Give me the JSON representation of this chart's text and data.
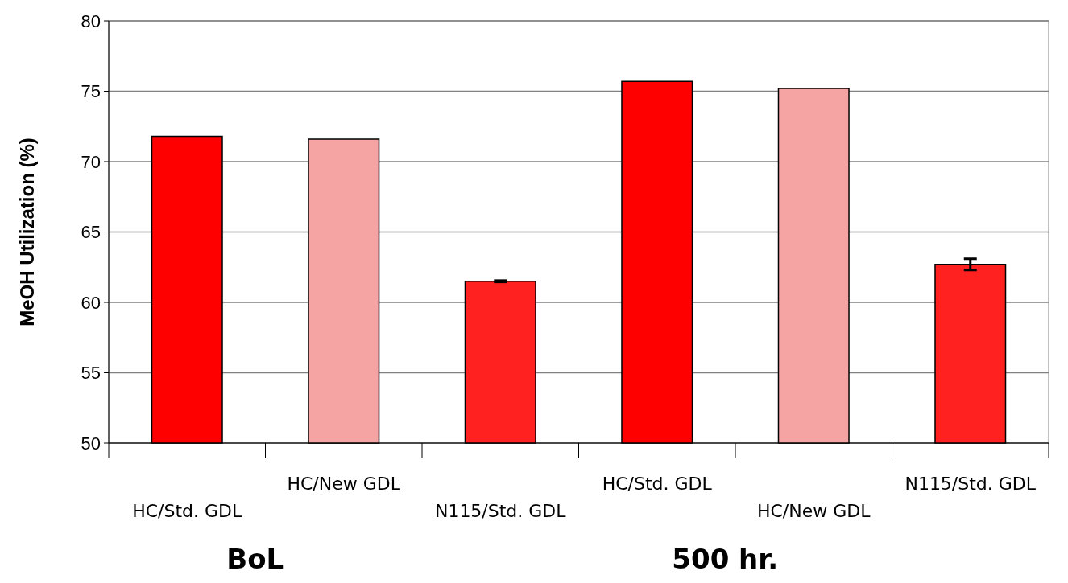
{
  "chart_data": {
    "type": "bar",
    "ylabel": "MeOH Utilization (%)",
    "categories": [
      "HC/Std. GDL",
      "HC/New GDL",
      "N115/Std. GDL",
      "HC/Std. GDL",
      "HC/New GDL",
      "N115/Std. GDL"
    ],
    "values": [
      71.8,
      71.6,
      61.5,
      75.7,
      75.2,
      62.7
    ],
    "colors": [
      "#ff0000",
      "#f5a3a3",
      "#ff2020",
      "#ff0000",
      "#f5a3a3",
      "#ff2020"
    ],
    "errors": [
      null,
      null,
      0.05,
      null,
      null,
      0.4
    ],
    "ylim": [
      50,
      80
    ],
    "yticks": [
      50,
      55,
      60,
      65,
      70,
      75,
      80
    ],
    "grid": "y",
    "annotations": [
      "BoL",
      "500 hr."
    ]
  }
}
